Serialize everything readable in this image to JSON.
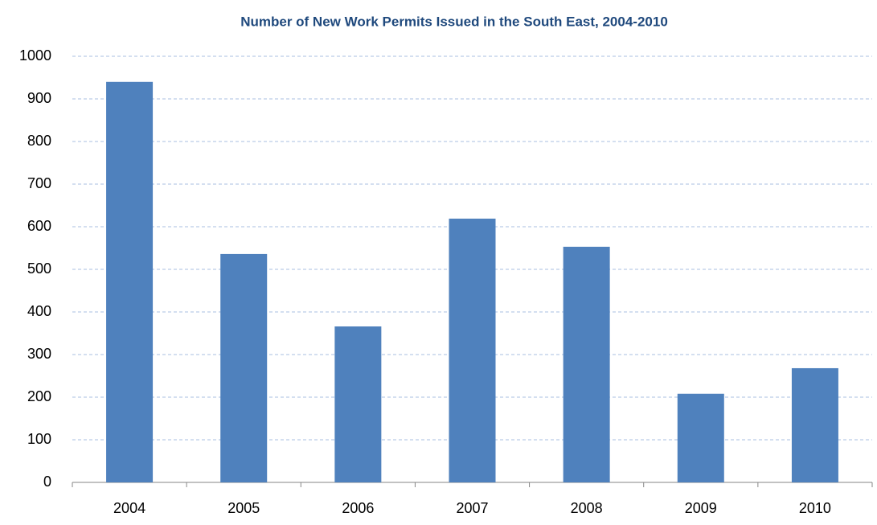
{
  "chart_data": {
    "type": "bar",
    "title": "Number of New Work Permits Issued in the South East, 2004-2010",
    "categories": [
      "2004",
      "2005",
      "2006",
      "2007",
      "2008",
      "2009",
      "2010"
    ],
    "values": [
      940,
      536,
      366,
      619,
      553,
      208,
      268
    ],
    "color": "#4f81bd",
    "ylim": [
      0,
      1000
    ],
    "yticks": [
      0,
      100,
      200,
      300,
      400,
      500,
      600,
      700,
      800,
      900,
      1000
    ],
    "grid": true
  }
}
